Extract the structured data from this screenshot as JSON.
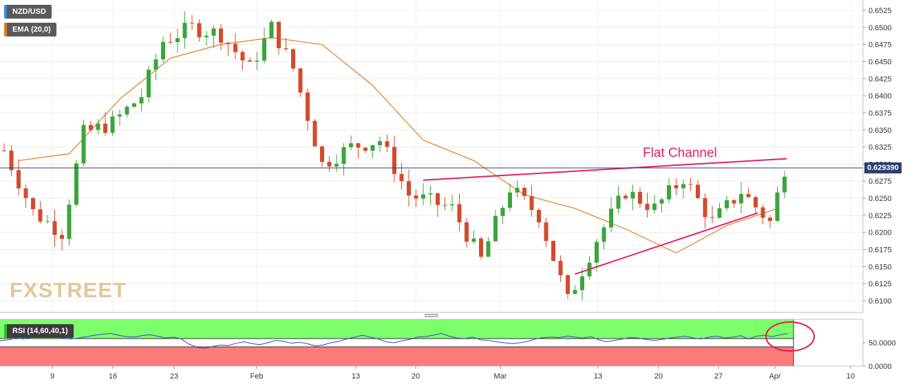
{
  "header": {
    "symbol_label": "NZD/USD",
    "ema_label": "EMA (20,0)",
    "ema_color": "#e07b20"
  },
  "price_tag": {
    "value": "0.629390",
    "color": "#2d3e6e"
  },
  "annotation": {
    "text": "Flat Channel",
    "color": "#e91e63"
  },
  "logo": {
    "text": "FXSTREET"
  },
  "rsi_panel": {
    "label": "RSI (14,60,40,1)",
    "upper_level": 60,
    "lower_level": 40,
    "upper_color": "#7dff6b",
    "lower_color": "#ff7b7b",
    "line_color": "#2a3fd6"
  },
  "chart_data": [
    {
      "type": "candlestick",
      "title": "NZD/USD",
      "x_ticks": [
        "9",
        "16",
        "23",
        "Feb",
        "13",
        "20",
        "Mar",
        "13",
        "20",
        "27",
        "Apr",
        "10"
      ],
      "y_ticks": [
        "0.6525",
        "0.6500",
        "0.6475",
        "0.6450",
        "0.6425",
        "0.6400",
        "0.6375",
        "0.6350",
        "0.6325",
        "0.6300",
        "0.6275",
        "0.6250",
        "0.6225",
        "0.6200",
        "0.6175",
        "0.6150",
        "0.6125",
        "0.6100"
      ],
      "ylim": [
        0.6083,
        0.6535
      ],
      "current_price": 0.62939,
      "up_color": "#3ba53b",
      "down_color": "#d44a2c",
      "series": [
        {
          "name": "EMA (20,0)",
          "x": [
            2,
            9,
            16,
            23,
            30,
            37,
            44,
            51,
            58,
            65,
            72,
            79,
            86,
            93,
            100,
            107
          ],
          "y": [
            0.6305,
            0.6315,
            0.6395,
            0.6455,
            0.6475,
            0.6485,
            0.6475,
            0.6415,
            0.6335,
            0.6305,
            0.6255,
            0.6235,
            0.6205,
            0.617,
            0.621,
            0.6235
          ]
        }
      ],
      "trendlines": [
        {
          "from": [
            58.0,
            0.62765
          ],
          "to": [
            108.3,
            0.63079
          ]
        },
        {
          "from": [
            79.0,
            0.6139
          ],
          "to": [
            104.3,
            0.62285
          ]
        }
      ],
      "x_domain": [
        0,
        111
      ]
    },
    {
      "type": "line",
      "title": "RSI (14,60,40,1)",
      "y_ticks": [
        "50.0000",
        "0.0000"
      ],
      "ylim": [
        0,
        100
      ],
      "levels": [
        60,
        40
      ],
      "values": [
        54,
        56,
        60,
        58,
        62,
        65,
        66,
        64,
        60,
        58,
        60,
        63,
        66,
        68,
        70,
        66,
        63,
        62,
        65,
        67,
        64,
        60,
        62,
        58,
        47,
        40,
        38,
        42,
        45,
        44,
        49,
        52,
        48,
        46,
        50,
        55,
        53,
        49,
        51,
        48,
        43,
        45,
        50,
        53,
        58,
        62,
        66,
        62,
        58,
        52,
        50,
        54,
        57,
        62,
        63,
        66,
        70,
        64,
        60,
        59,
        62,
        56,
        55,
        52,
        50,
        48,
        50,
        53,
        58,
        61,
        62,
        61,
        64,
        62,
        60,
        63,
        56,
        52,
        55,
        58,
        61,
        60,
        57,
        55,
        57,
        60,
        62,
        64,
        60,
        58,
        62,
        64,
        60,
        62,
        65,
        58,
        64,
        66,
        63,
        67,
        70
      ]
    }
  ]
}
